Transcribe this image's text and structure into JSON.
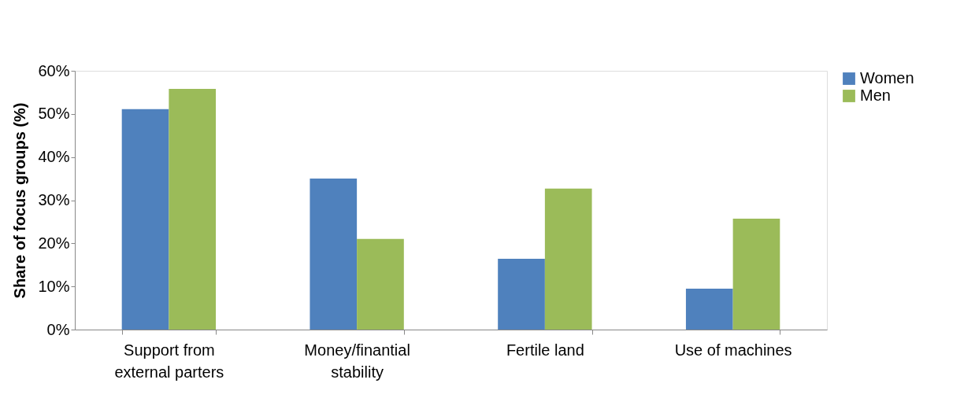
{
  "chart_data": {
    "type": "bar",
    "ylabel": "Share of focus groups (%)",
    "categories": [
      "Support from external parters",
      "Money/finantial stability",
      "Fertile land",
      "Use of machines"
    ],
    "series": [
      {
        "name": "Women",
        "color": "#4f81bd",
        "values": [
          51.1,
          35.0,
          16.4,
          9.5
        ]
      },
      {
        "name": "Men",
        "color": "#9bbb59",
        "values": [
          55.8,
          21.0,
          32.7,
          25.7
        ]
      }
    ],
    "ylim": [
      0,
      60
    ],
    "yticks": [
      {
        "value": 0,
        "label": "0%"
      },
      {
        "value": 10,
        "label": "10%"
      },
      {
        "value": 20,
        "label": "20%"
      },
      {
        "value": 30,
        "label": "30%"
      },
      {
        "value": 40,
        "label": "40%"
      },
      {
        "value": 50,
        "label": "50%"
      },
      {
        "value": 60,
        "label": "60%"
      }
    ],
    "grid": false,
    "legend": "right"
  }
}
